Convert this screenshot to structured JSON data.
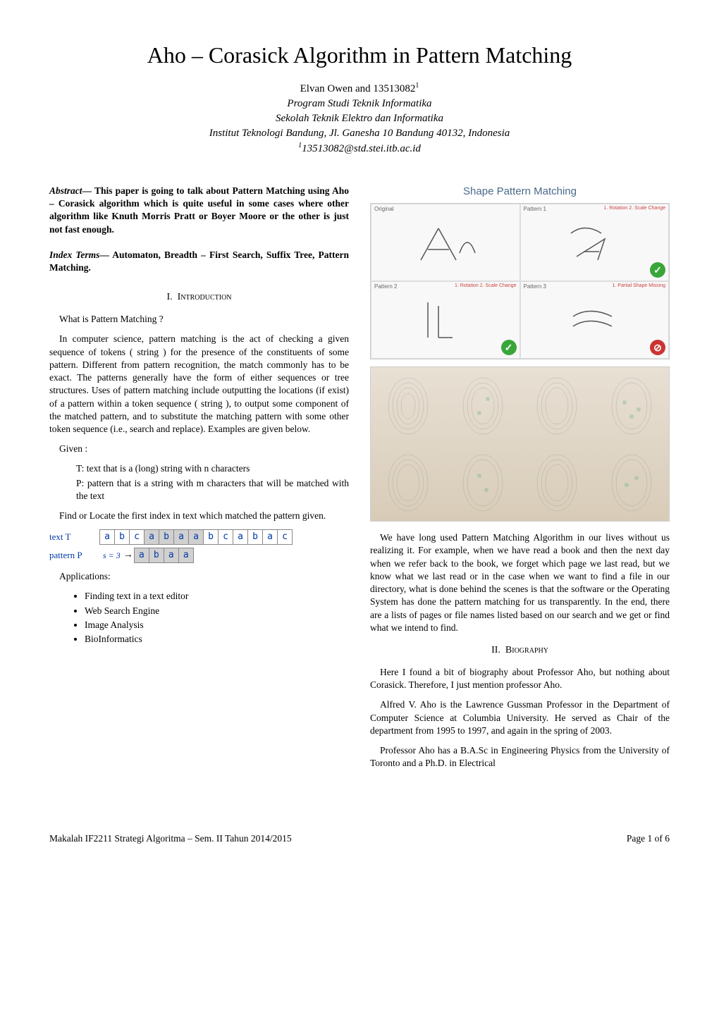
{
  "title": "Aho – Corasick Algorithm in Pattern Matching",
  "author": {
    "name_line": "Elvan Owen and 13513082",
    "sup": "1",
    "affil1": "Program Studi Teknik Informatika",
    "affil2": "Sekolah Teknik Elektro dan Informatika",
    "affil3": "Institut Teknologi Bandung, Jl. Ganesha 10 Bandung 40132, Indonesia",
    "email_sup": "1",
    "email": "13513082@std.stei.itb.ac.id"
  },
  "abstract": {
    "label": "Abstract",
    "text": "— This paper is going to talk about Pattern Matching using Aho – Corasick algorithm which is quite useful in some cases where other algorithm like Knuth Morris Pratt or Boyer Moore or the other is just not fast enough."
  },
  "index_terms": {
    "label": "Index Terms",
    "text": "— Automaton, Breadth – First Search, Suffix Tree, Pattern Matching."
  },
  "sections": {
    "s1": {
      "num": "I.",
      "title": "Introduction"
    },
    "s2": {
      "num": "II.",
      "title": "Biography"
    }
  },
  "left_col": {
    "q": "What is Pattern Matching ?",
    "p1": "In computer science, pattern matching is the act of checking a given sequence of tokens ( string ) for the presence of the constituents of some pattern. Different from pattern recognition, the match commonly has to be exact. The patterns generally have the form of either sequences or tree structures. Uses of pattern matching include outputting the locations (if exist) of a pattern within a token sequence ( string ), to output some component of the matched pattern, and to substitute the matching pattern with some other token sequence (i.e., search and replace). Examples are given below.",
    "given": "Given :",
    "given_t": "T: text that is a (long) string with n characters",
    "given_p": "P: pattern that is a string with m characters that will be matched with the text",
    "find": "Find or Locate the first index in text which matched the pattern given.",
    "table": {
      "text_label": "text  T",
      "pattern_label": "pattern  P",
      "shift_label": "s = 3",
      "text_cells": [
        "a",
        "b",
        "c",
        "a",
        "b",
        "a",
        "a",
        "b",
        "c",
        "a",
        "b",
        "a",
        "c"
      ],
      "highlight_indices": [
        3,
        4,
        5,
        6
      ],
      "pattern_cells": [
        "a",
        "b",
        "a",
        "a"
      ]
    },
    "applications_label": "Applications:",
    "applications": [
      "Finding text in a text editor",
      "Web Search Engine",
      "Image Analysis",
      "BioInformatics"
    ]
  },
  "right_col": {
    "shape_fig": {
      "title": "Shape Pattern Matching",
      "cells": {
        "c0_label": "Original",
        "c1_label": "Pattern 1",
        "c1_annot": "1. Rotation\n2. Scale Change",
        "c2_label": "Pattern 2",
        "c2_annot": "1. Rotation\n2. Scale Change",
        "c3_label": "Pattern 3",
        "c3_annot": "1. Partial Shape Missing"
      }
    },
    "p1": "We have long used Pattern Matching Algorithm in our lives without us realizing it. For example, when we have read a book and then the next day when we refer back to the book, we forget which page we last read, but we know what we last read or in the case when we want to find a file in our directory, what is done behind the scenes is that the software or the Operating System has done the pattern matching for us transparently. In the end, there are a lists of pages or file names listed based on our search and we get or find what we intend to find.",
    "p2": "Here I found a bit of biography about Professor Aho, but nothing about Corasick. Therefore, I just mention professor Aho.",
    "p3": "Alfred V. Aho is the Lawrence Gussman Professor in the Department of Computer Science at Columbia University. He served as Chair of the department from 1995 to 1997, and again in the spring of 2003.",
    "p4": "Professor Aho has a B.A.Sc in Engineering Physics from the University of Toronto and a Ph.D. in Electrical"
  },
  "footer": {
    "left": "Makalah IF2211 Strategi Algoritma – Sem. II Tahun 2014/2015",
    "right": "Page 1 of  6"
  }
}
